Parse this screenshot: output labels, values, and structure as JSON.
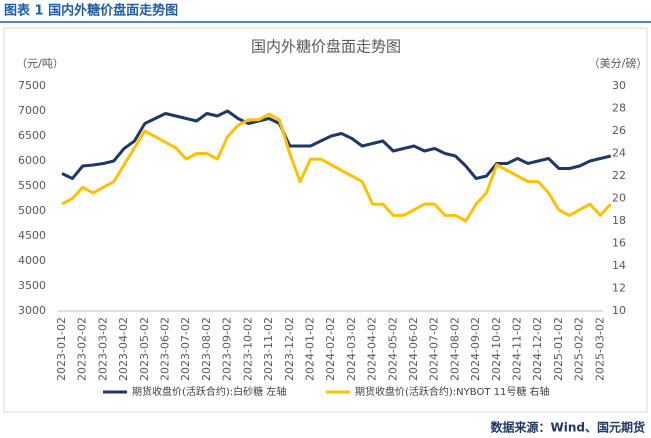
{
  "header": "图表 1  国内外糖价盘面走势图",
  "source": "数据来源：Wind、国元期货",
  "chart_data": {
    "type": "line",
    "title": "国内外糖价盘面走势图",
    "ylabel": "（元/吨）",
    "y2label": "（美分/磅）",
    "categories": [
      "2023-01-02",
      null,
      "2023-02-02",
      null,
      "2023-03-02",
      null,
      "2023-04-02",
      null,
      "2023-05-02",
      null,
      "2023-06-02",
      null,
      "2023-07-02",
      null,
      "2023-08-02",
      null,
      "2023-09-02",
      null,
      "2023-10-02",
      null,
      "2023-11-02",
      null,
      "2023-12-02",
      null,
      "2024-01-02",
      null,
      "2024-02-02",
      null,
      "2024-03-02",
      null,
      "2024-04-02",
      null,
      "2024-05-02",
      null,
      "2024-06-02",
      null,
      "2024-07-02",
      null,
      "2024-08-02",
      null,
      "2024-09-02",
      null,
      "2024-10-02",
      null,
      "2024-11-02",
      null,
      "2024-12-02",
      null,
      "2025-01-02",
      null,
      "2025-02-02",
      null,
      "2025-03-02",
      null
    ],
    "series": [
      {
        "name": "期货收盘价(活跃合约):白砂糖  左轴",
        "color": "#1f3864",
        "values": [
          5750,
          5650,
          5900,
          5920,
          5950,
          6000,
          6250,
          6400,
          6750,
          6850,
          6950,
          6900,
          6850,
          6800,
          6950,
          6900,
          7000,
          6850,
          6750,
          6800,
          6850,
          6750,
          6300,
          6300,
          6300,
          6400,
          6500,
          6550,
          6450,
          6300,
          6350,
          6400,
          6200,
          6250,
          6300,
          6200,
          6250,
          6150,
          6100,
          5900,
          5650,
          5700,
          5950,
          5950,
          6050,
          5950,
          6000,
          6050,
          5850,
          5850,
          5900,
          6000,
          6050,
          6100
        ]
      },
      {
        "name": "期货收盘价(活跃合约):NYBOT 11号糖  右轴",
        "color": "#ffc000",
        "axis": "y2",
        "values": [
          19.5,
          20,
          21,
          20.5,
          21,
          21.5,
          23,
          24.5,
          26,
          25.5,
          25,
          24.5,
          23.5,
          24,
          24,
          23.5,
          25.5,
          26.5,
          27,
          27,
          27.5,
          27,
          24,
          21.5,
          23.5,
          23.5,
          23,
          22.5,
          22,
          21.5,
          19.5,
          19.5,
          18.5,
          18.5,
          19,
          19.5,
          19.5,
          18.5,
          18.5,
          18,
          19.5,
          20.5,
          23,
          22.5,
          22,
          21.5,
          21.5,
          20.5,
          19,
          18.5,
          19,
          19.5,
          18.5,
          19.5
        ]
      }
    ],
    "ylim": [
      3000,
      7500
    ],
    "yticks": [
      3000,
      3500,
      4000,
      4500,
      5000,
      5500,
      6000,
      6500,
      7000,
      7500
    ],
    "y2lim": [
      10,
      30
    ],
    "y2ticks": [
      10,
      12,
      14,
      16,
      18,
      20,
      22,
      24,
      26,
      28,
      30
    ],
    "grid": false
  }
}
